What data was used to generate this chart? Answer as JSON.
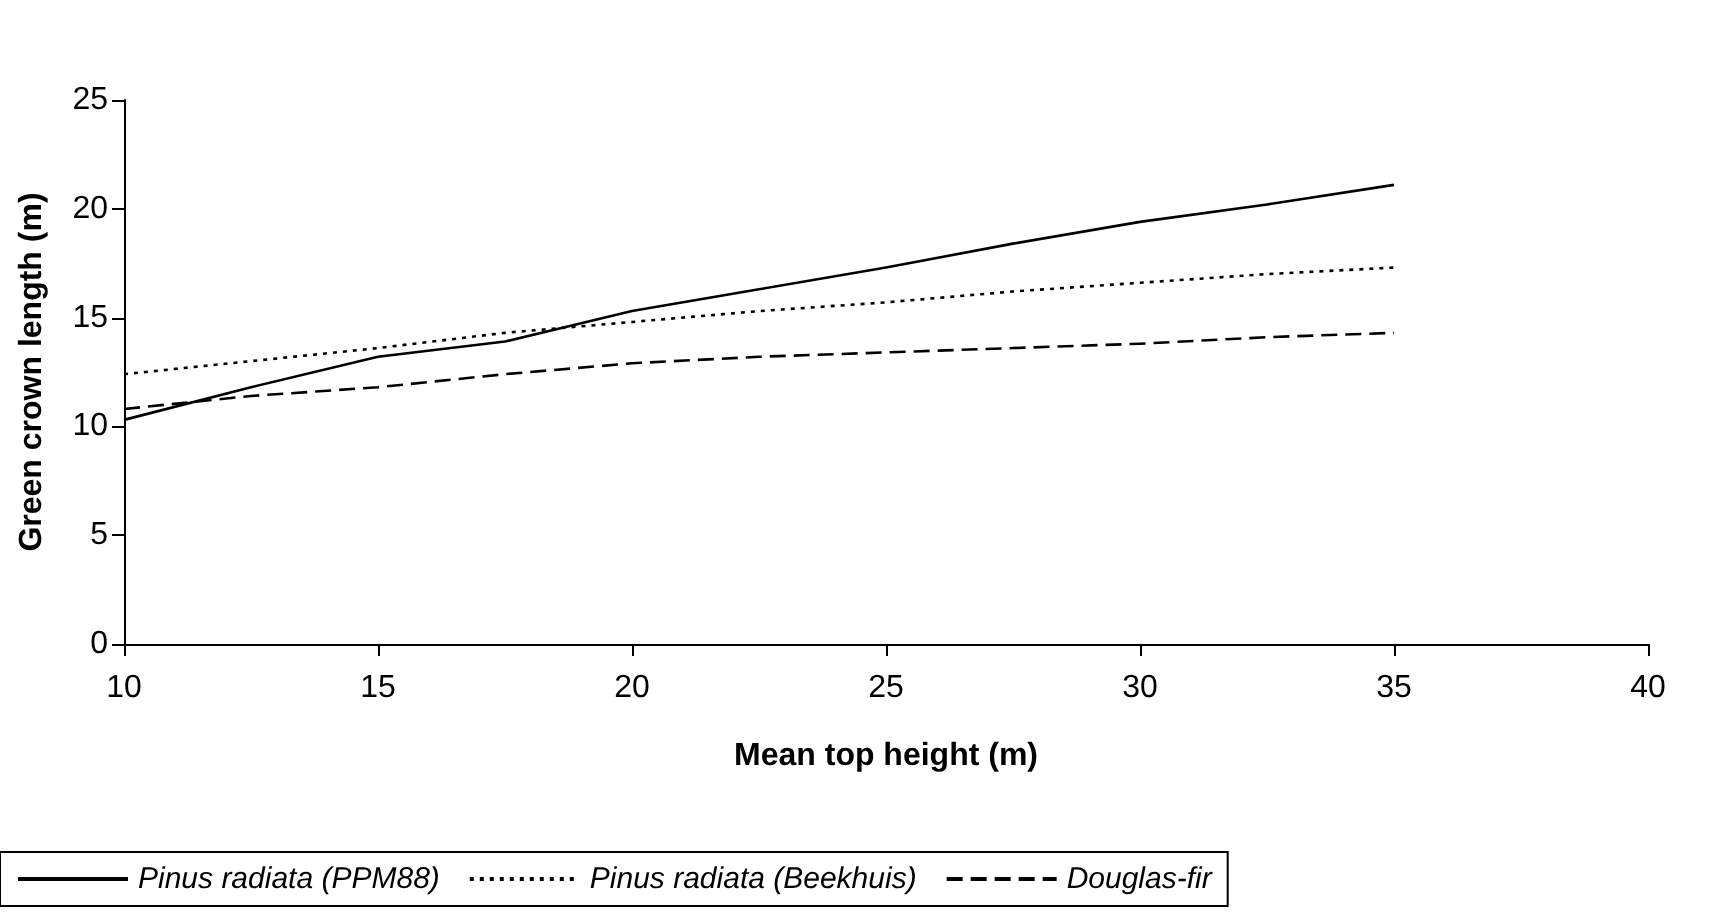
{
  "chart_data": {
    "type": "line",
    "xlabel": "Mean top height (m)",
    "ylabel": "Green crown length (m)",
    "x": [
      10,
      12.5,
      15,
      17.5,
      20,
      22.5,
      25,
      27.5,
      30,
      32.5,
      35
    ],
    "series": [
      {
        "name": "Pinus radiata (PPM88)",
        "color": "#000000",
        "line_style": "solid",
        "values": [
          10.3,
          11.8,
          13.2,
          13.9,
          15.3,
          16.3,
          17.3,
          18.4,
          19.4,
          20.2,
          21.1
        ]
      },
      {
        "name": "Pinus radiata (Beekhuis)",
        "color": "#000000",
        "line_style": "dotted",
        "values": [
          12.4,
          13.0,
          13.6,
          14.3,
          14.8,
          15.3,
          15.7,
          16.2,
          16.6,
          17.0,
          17.3
        ]
      },
      {
        "name": "Douglas-fir",
        "color": "#000000",
        "line_style": "dashed",
        "values": [
          10.8,
          11.4,
          11.8,
          12.4,
          12.9,
          13.2,
          13.4,
          13.6,
          13.8,
          14.1,
          14.3
        ]
      }
    ],
    "xlim": [
      10,
      40
    ],
    "xticks": [
      10,
      15,
      20,
      25,
      30,
      35,
      40
    ],
    "ylim": [
      0,
      25
    ],
    "yticks": [
      0,
      5,
      10,
      15,
      20,
      25
    ],
    "grid": false,
    "legend": "bottom",
    "marker": "none"
  }
}
